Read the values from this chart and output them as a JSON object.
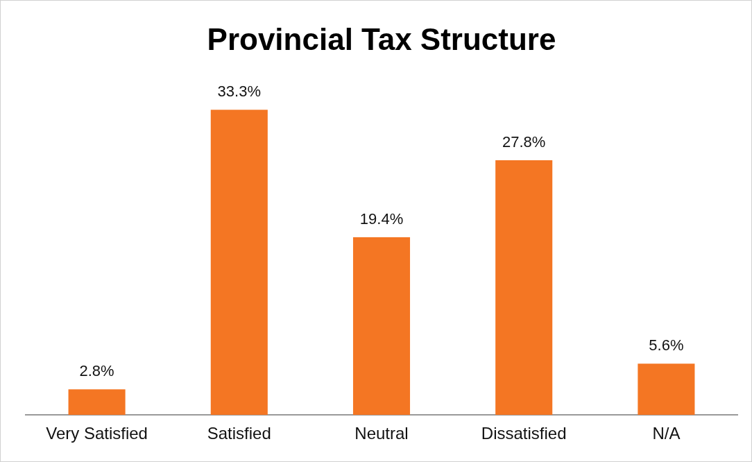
{
  "chart_data": {
    "type": "bar",
    "title": "Provincial Tax Structure",
    "categories": [
      "Very Satisfied",
      "Satisfied",
      "Neutral",
      "Dissatisfied",
      "N/A"
    ],
    "values": [
      2.8,
      33.3,
      19.4,
      27.8,
      5.6
    ],
    "color": "#f47623",
    "value_labels": [
      "2.8%",
      "33.3%",
      "19.4%",
      "27.8%",
      "5.6%"
    ],
    "grid": false,
    "legend": false
  }
}
